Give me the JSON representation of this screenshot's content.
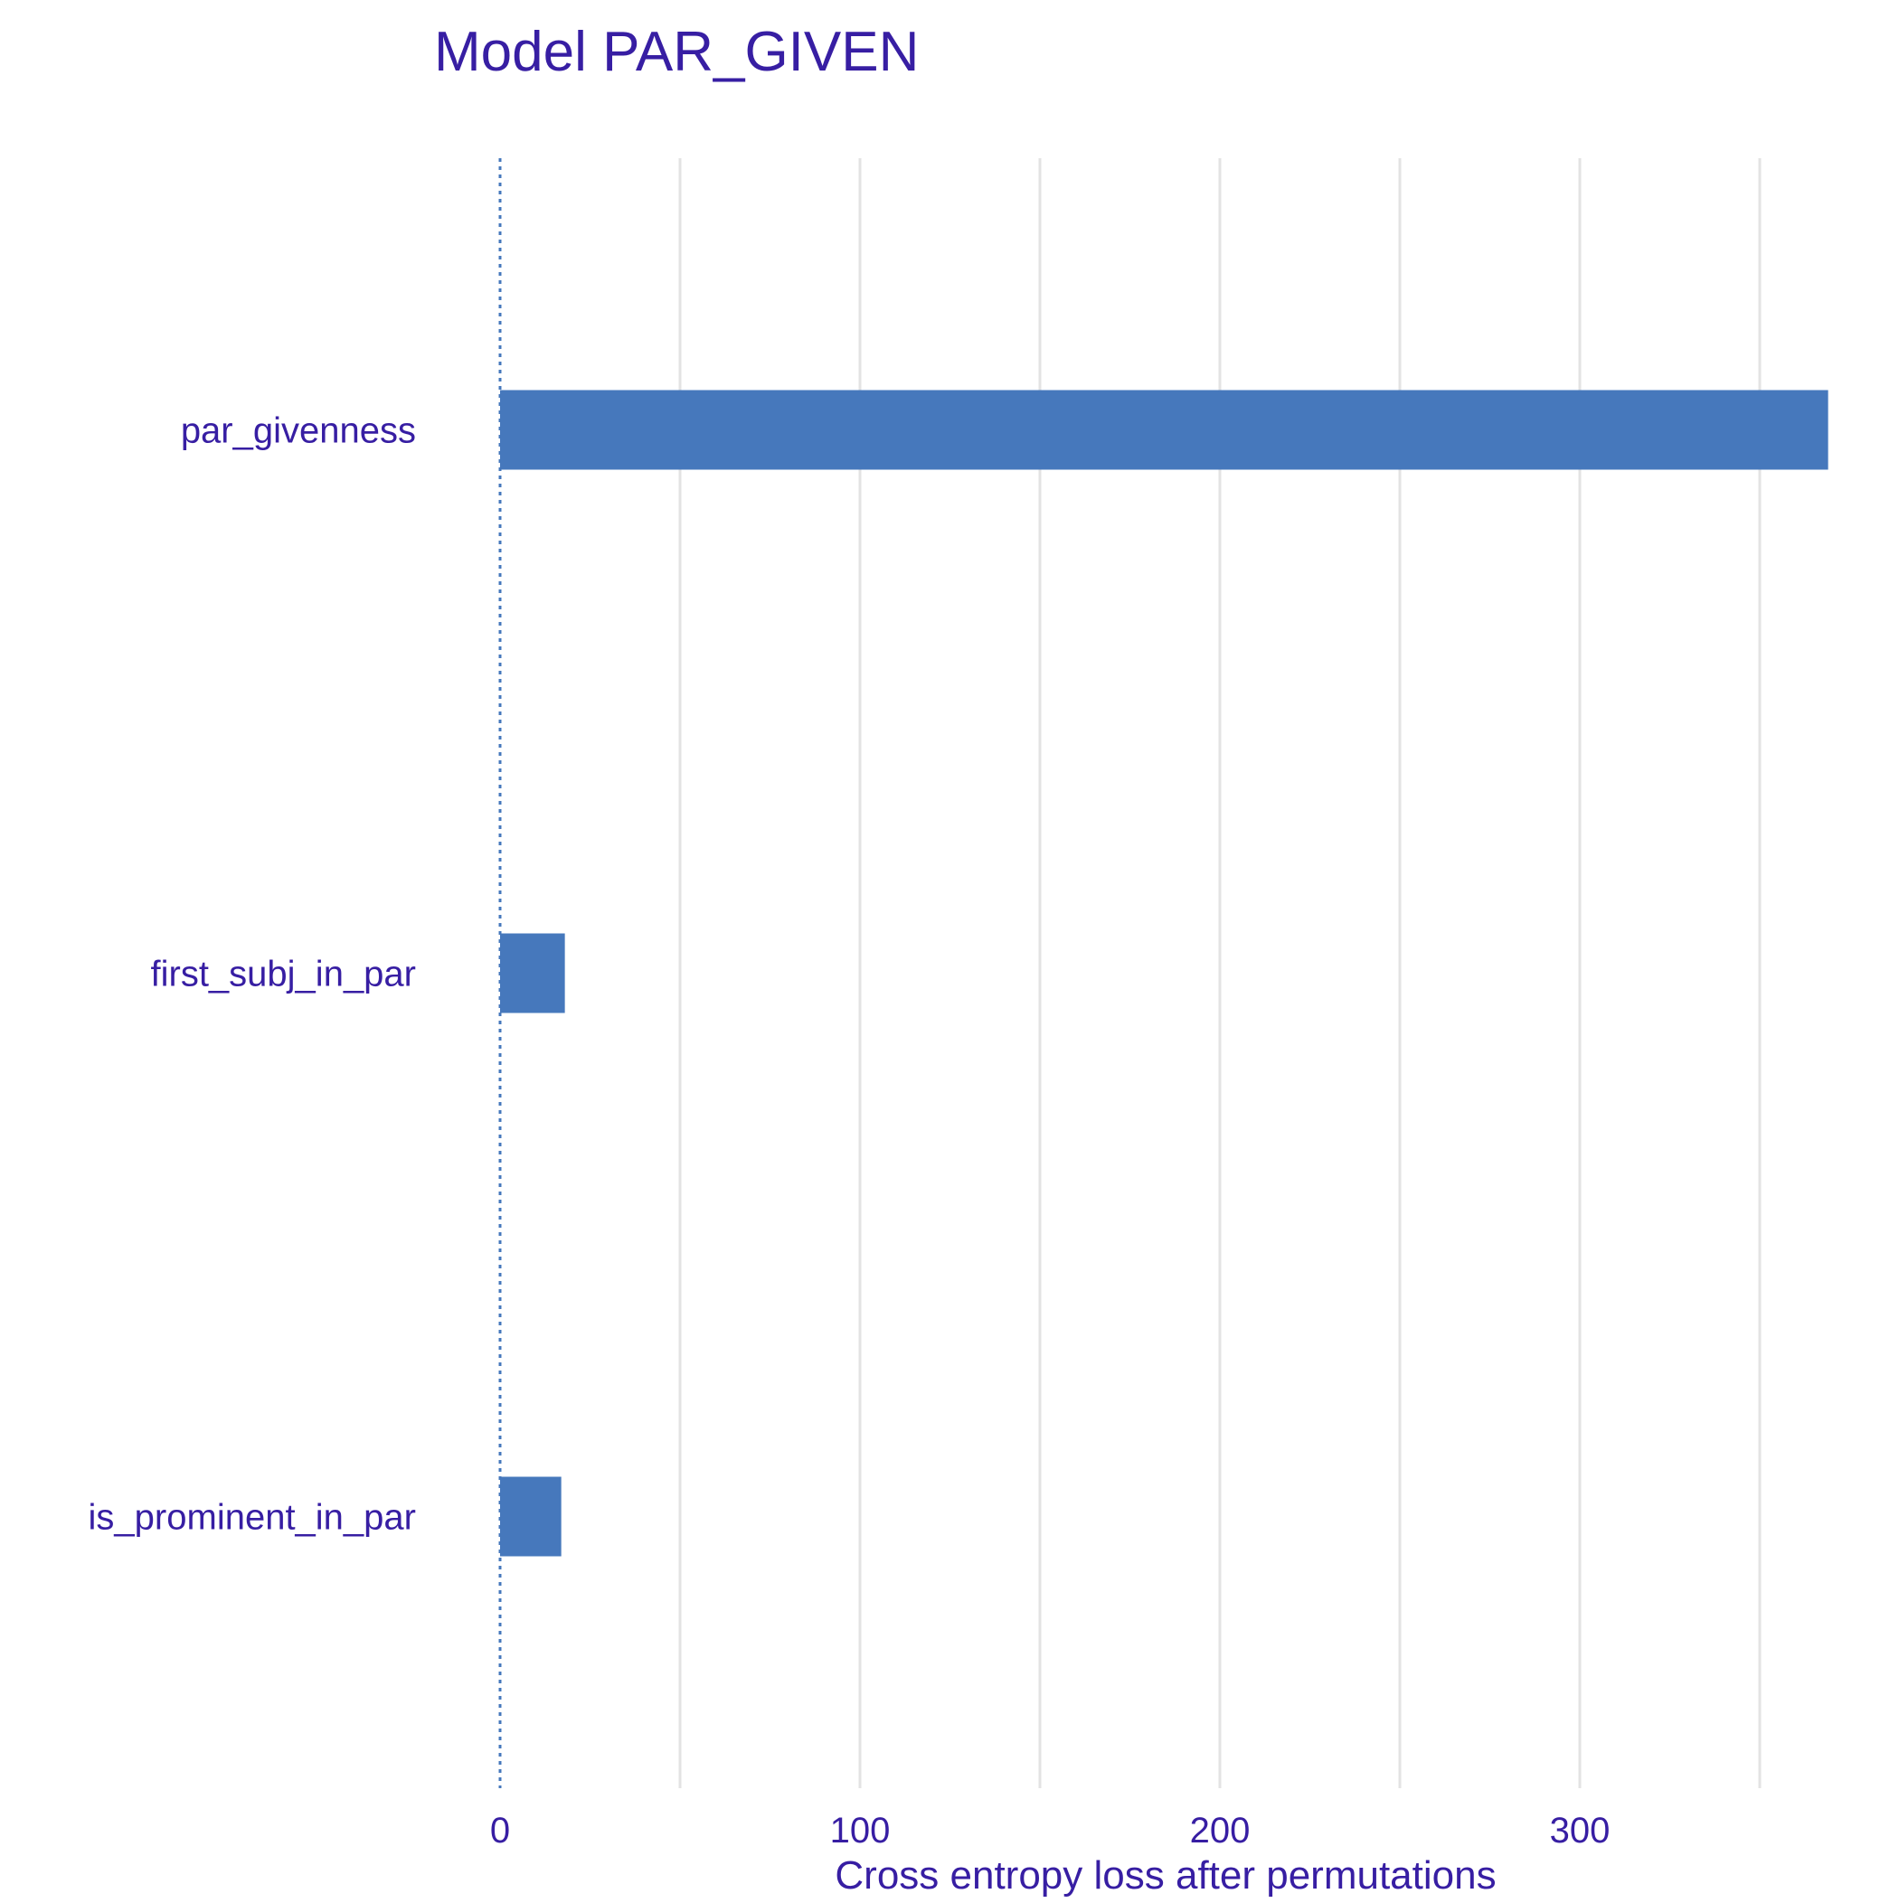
{
  "chart_data": {
    "type": "bar",
    "orientation": "horizontal",
    "title": "Model PAR_GIVEN",
    "xlabel": "Cross entropy loss after permutations",
    "ylabel": "",
    "categories": [
      "par_givenness",
      "first_subj_in_par",
      "is_prominent_in_par"
    ],
    "values": [
      369,
      18,
      17
    ],
    "baseline": 0,
    "xlim": [
      0,
      370
    ],
    "xticks": [
      0,
      100,
      200,
      300
    ],
    "xtick_labels": [
      "0",
      "100",
      "200",
      "300"
    ],
    "grid": true,
    "legend": "none"
  },
  "colors": {
    "bar": "#4678BC",
    "text": "#371EA3",
    "grid": "#E3E3E3",
    "baseline": "#4678BC"
  }
}
